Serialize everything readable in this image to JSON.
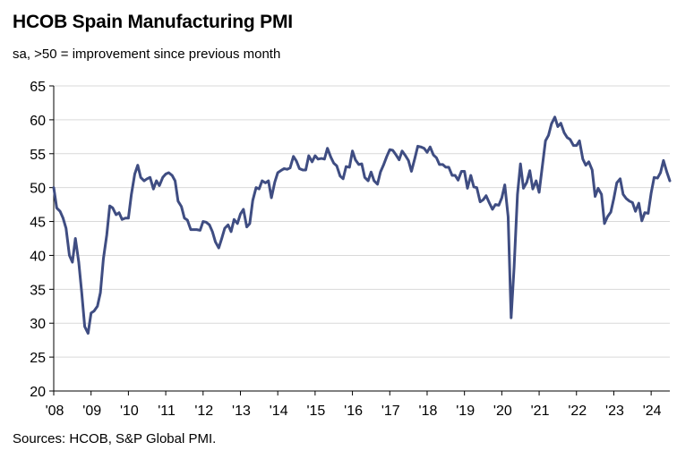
{
  "header": {
    "title": "HCOB Spain Manufacturing PMI",
    "subtitle": "sa, >50 = improvement since previous month"
  },
  "footer": {
    "source": "Sources: HCOB, S&P Global PMI."
  },
  "colors": {
    "line": "#3f4d82",
    "grid": "#d9d9d9",
    "axis": "#000000"
  },
  "chart_data": {
    "type": "line",
    "title": "HCOB Spain Manufacturing PMI",
    "subtitle": "sa, >50 = improvement since previous month",
    "xlabel": "",
    "ylabel": "",
    "ylim": [
      20,
      65
    ],
    "yticks": [
      20,
      25,
      30,
      35,
      40,
      45,
      50,
      55,
      60,
      65
    ],
    "xlim": [
      2008.0,
      2024.5
    ],
    "xtick_labels": [
      "'08",
      "'09",
      "'10",
      "'11",
      "'12",
      "'13",
      "'14",
      "'15",
      "'16",
      "'17",
      "'18",
      "'19",
      "'20",
      "'21",
      "'22",
      "'23",
      "'24"
    ],
    "grid": "horizontal",
    "series": [
      {
        "points": [
          [
            2008.0,
            50.0
          ],
          [
            2008.08,
            47.0
          ],
          [
            2008.17,
            46.5
          ],
          [
            2008.25,
            45.5
          ],
          [
            2008.33,
            44.0
          ],
          [
            2008.42,
            40.0
          ],
          [
            2008.5,
            39.0
          ],
          [
            2008.58,
            42.5
          ],
          [
            2008.67,
            39.0
          ],
          [
            2008.75,
            34.5
          ],
          [
            2008.83,
            29.5
          ],
          [
            2008.92,
            28.5
          ],
          [
            2009.0,
            31.5
          ],
          [
            2009.08,
            31.8
          ],
          [
            2009.17,
            32.5
          ],
          [
            2009.25,
            34.5
          ],
          [
            2009.33,
            39.5
          ],
          [
            2009.42,
            43.0
          ],
          [
            2009.5,
            47.3
          ],
          [
            2009.58,
            47.0
          ],
          [
            2009.67,
            46.0
          ],
          [
            2009.75,
            46.3
          ],
          [
            2009.83,
            45.3
          ],
          [
            2009.92,
            45.5
          ],
          [
            2010.0,
            45.5
          ],
          [
            2010.08,
            49.0
          ],
          [
            2010.17,
            52.0
          ],
          [
            2010.25,
            53.3
          ],
          [
            2010.33,
            51.5
          ],
          [
            2010.42,
            51.0
          ],
          [
            2010.5,
            51.3
          ],
          [
            2010.58,
            51.5
          ],
          [
            2010.67,
            49.8
          ],
          [
            2010.75,
            51.0
          ],
          [
            2010.83,
            50.3
          ],
          [
            2010.92,
            51.5
          ],
          [
            2011.0,
            52.0
          ],
          [
            2011.08,
            52.2
          ],
          [
            2011.17,
            51.8
          ],
          [
            2011.25,
            51.0
          ],
          [
            2011.33,
            48.0
          ],
          [
            2011.42,
            47.2
          ],
          [
            2011.5,
            45.5
          ],
          [
            2011.58,
            45.2
          ],
          [
            2011.67,
            43.8
          ],
          [
            2011.75,
            43.8
          ],
          [
            2011.83,
            43.8
          ],
          [
            2011.92,
            43.7
          ],
          [
            2012.0,
            45.0
          ],
          [
            2012.08,
            44.9
          ],
          [
            2012.17,
            44.5
          ],
          [
            2012.25,
            43.5
          ],
          [
            2012.33,
            42.0
          ],
          [
            2012.42,
            41.1
          ],
          [
            2012.5,
            42.5
          ],
          [
            2012.58,
            44.0
          ],
          [
            2012.67,
            44.5
          ],
          [
            2012.75,
            43.5
          ],
          [
            2012.83,
            45.3
          ],
          [
            2012.92,
            44.7
          ],
          [
            2013.0,
            46.1
          ],
          [
            2013.08,
            46.8
          ],
          [
            2013.17,
            44.2
          ],
          [
            2013.25,
            44.7
          ],
          [
            2013.33,
            48.1
          ],
          [
            2013.42,
            50.0
          ],
          [
            2013.5,
            49.8
          ],
          [
            2013.58,
            51.0
          ],
          [
            2013.67,
            50.7
          ],
          [
            2013.75,
            51.0
          ],
          [
            2013.83,
            48.5
          ],
          [
            2013.92,
            50.8
          ],
          [
            2014.0,
            52.2
          ],
          [
            2014.08,
            52.5
          ],
          [
            2014.17,
            52.8
          ],
          [
            2014.25,
            52.7
          ],
          [
            2014.33,
            52.9
          ],
          [
            2014.42,
            54.6
          ],
          [
            2014.5,
            53.9
          ],
          [
            2014.58,
            52.8
          ],
          [
            2014.67,
            52.6
          ],
          [
            2014.75,
            52.6
          ],
          [
            2014.83,
            54.7
          ],
          [
            2014.92,
            53.8
          ],
          [
            2015.0,
            54.7
          ],
          [
            2015.08,
            54.2
          ],
          [
            2015.17,
            54.3
          ],
          [
            2015.25,
            54.2
          ],
          [
            2015.33,
            55.8
          ],
          [
            2015.42,
            54.5
          ],
          [
            2015.5,
            53.6
          ],
          [
            2015.58,
            53.2
          ],
          [
            2015.67,
            51.7
          ],
          [
            2015.75,
            51.3
          ],
          [
            2015.83,
            53.1
          ],
          [
            2015.92,
            53.0
          ],
          [
            2016.0,
            55.4
          ],
          [
            2016.08,
            54.1
          ],
          [
            2016.17,
            53.4
          ],
          [
            2016.25,
            53.5
          ],
          [
            2016.33,
            51.5
          ],
          [
            2016.42,
            51.0
          ],
          [
            2016.5,
            52.3
          ],
          [
            2016.58,
            51.0
          ],
          [
            2016.67,
            50.5
          ],
          [
            2016.75,
            52.3
          ],
          [
            2016.83,
            53.3
          ],
          [
            2016.92,
            54.6
          ],
          [
            2017.0,
            55.6
          ],
          [
            2017.08,
            55.5
          ],
          [
            2017.17,
            54.8
          ],
          [
            2017.25,
            54.1
          ],
          [
            2017.33,
            55.4
          ],
          [
            2017.42,
            54.7
          ],
          [
            2017.5,
            54.0
          ],
          [
            2017.58,
            52.4
          ],
          [
            2017.67,
            54.3
          ],
          [
            2017.75,
            56.1
          ],
          [
            2017.83,
            56.0
          ],
          [
            2017.92,
            55.8
          ],
          [
            2018.0,
            55.2
          ],
          [
            2018.08,
            56.0
          ],
          [
            2018.17,
            54.8
          ],
          [
            2018.25,
            54.4
          ],
          [
            2018.33,
            53.4
          ],
          [
            2018.42,
            53.4
          ],
          [
            2018.5,
            53.0
          ],
          [
            2018.58,
            53.0
          ],
          [
            2018.67,
            51.8
          ],
          [
            2018.75,
            51.8
          ],
          [
            2018.83,
            51.1
          ],
          [
            2018.92,
            52.4
          ],
          [
            2019.0,
            52.4
          ],
          [
            2019.08,
            49.9
          ],
          [
            2019.17,
            51.8
          ],
          [
            2019.25,
            50.1
          ],
          [
            2019.33,
            50.0
          ],
          [
            2019.42,
            47.9
          ],
          [
            2019.5,
            48.2
          ],
          [
            2019.58,
            48.8
          ],
          [
            2019.67,
            47.7
          ],
          [
            2019.75,
            46.8
          ],
          [
            2019.83,
            47.5
          ],
          [
            2019.92,
            47.4
          ],
          [
            2020.0,
            48.5
          ],
          [
            2020.08,
            50.4
          ],
          [
            2020.17,
            45.7
          ],
          [
            2020.25,
            30.8
          ],
          [
            2020.33,
            38.3
          ],
          [
            2020.42,
            49.0
          ],
          [
            2020.5,
            53.5
          ],
          [
            2020.58,
            49.9
          ],
          [
            2020.67,
            50.8
          ],
          [
            2020.75,
            52.5
          ],
          [
            2020.83,
            49.8
          ],
          [
            2020.92,
            51.0
          ],
          [
            2021.0,
            49.3
          ],
          [
            2021.08,
            52.9
          ],
          [
            2021.17,
            56.9
          ],
          [
            2021.25,
            57.7
          ],
          [
            2021.33,
            59.4
          ],
          [
            2021.42,
            60.4
          ],
          [
            2021.5,
            59.0
          ],
          [
            2021.58,
            59.5
          ],
          [
            2021.67,
            58.1
          ],
          [
            2021.75,
            57.4
          ],
          [
            2021.83,
            57.1
          ],
          [
            2021.92,
            56.2
          ],
          [
            2022.0,
            56.2
          ],
          [
            2022.08,
            56.9
          ],
          [
            2022.17,
            54.2
          ],
          [
            2022.25,
            53.3
          ],
          [
            2022.33,
            53.8
          ],
          [
            2022.42,
            52.6
          ],
          [
            2022.5,
            48.7
          ],
          [
            2022.58,
            49.9
          ],
          [
            2022.67,
            49.0
          ],
          [
            2022.75,
            44.7
          ],
          [
            2022.83,
            45.7
          ],
          [
            2022.92,
            46.4
          ],
          [
            2023.0,
            48.4
          ],
          [
            2023.08,
            50.7
          ],
          [
            2023.17,
            51.3
          ],
          [
            2023.25,
            49.0
          ],
          [
            2023.33,
            48.4
          ],
          [
            2023.42,
            48.0
          ],
          [
            2023.5,
            47.8
          ],
          [
            2023.58,
            46.5
          ],
          [
            2023.67,
            47.7
          ],
          [
            2023.75,
            45.1
          ],
          [
            2023.83,
            46.3
          ],
          [
            2023.92,
            46.2
          ],
          [
            2024.0,
            49.2
          ],
          [
            2024.08,
            51.5
          ],
          [
            2024.17,
            51.4
          ],
          [
            2024.25,
            52.2
          ],
          [
            2024.33,
            54.0
          ],
          [
            2024.42,
            52.3
          ],
          [
            2024.5,
            51.0
          ]
        ]
      }
    ]
  }
}
